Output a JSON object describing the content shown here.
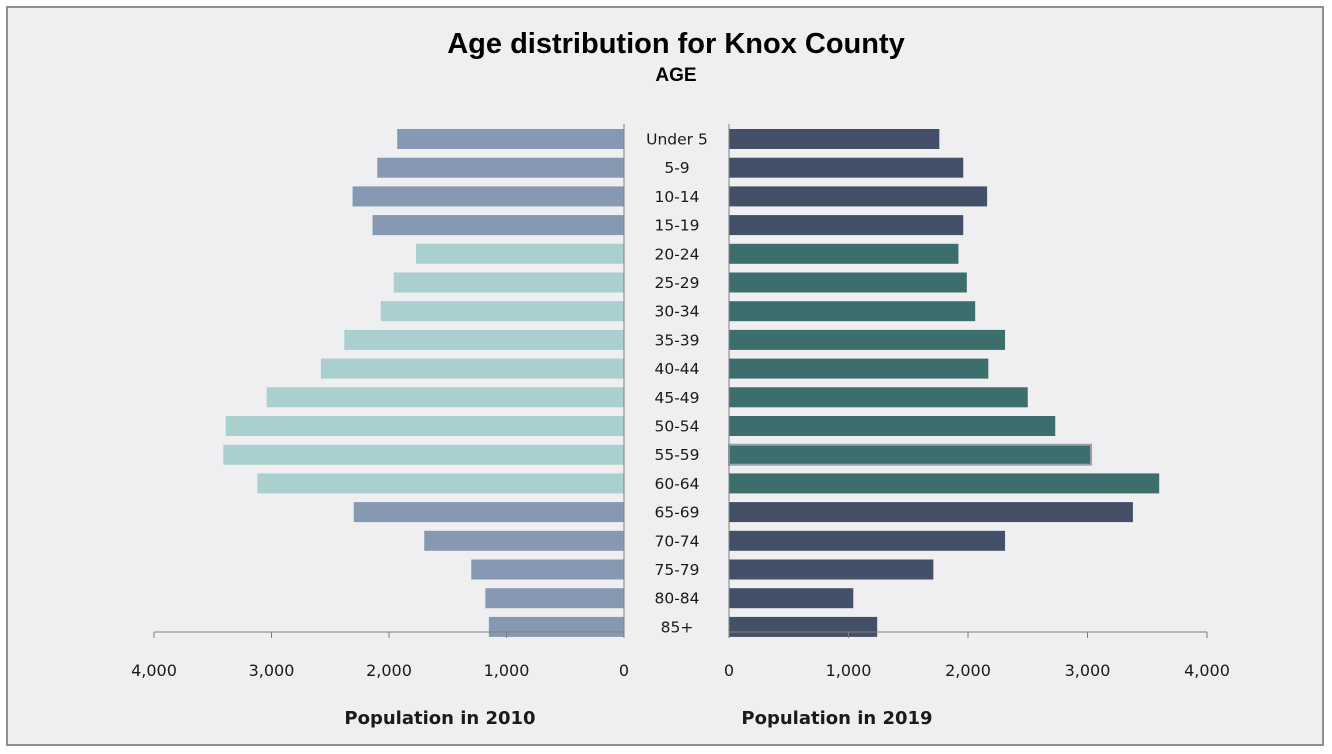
{
  "chart_data": {
    "type": "bar",
    "title": "Age distribution for Knox County",
    "subtitle": "AGE",
    "categories": [
      "Under 5",
      "5-9",
      "10-14",
      "15-19",
      "20-24",
      "25-29",
      "30-34",
      "35-39",
      "40-44",
      "45-49",
      "50-54",
      "55-59",
      "60-64",
      "65-69",
      "70-74",
      "75-79",
      "80-84",
      "85+"
    ],
    "series": [
      {
        "name": "Population in 2010",
        "values": [
          1930,
          2100,
          2310,
          2140,
          1770,
          1960,
          2070,
          2380,
          2580,
          3040,
          3390,
          3410,
          3120,
          2300,
          1700,
          1300,
          1180,
          1150
        ],
        "colors": [
          "#8798b3",
          "#8798b3",
          "#8798b3",
          "#8798b3",
          "#a9cfcf",
          "#a9cfcf",
          "#a9cfcf",
          "#a9cfcf",
          "#a9cfcf",
          "#a9cfcf",
          "#a9cfcf",
          "#a9cfcf",
          "#a9cfcf",
          "#8798b3",
          "#8798b3",
          "#8798b3",
          "#8798b3",
          "#8798b3"
        ]
      },
      {
        "name": "Population in 2019",
        "values": [
          1760,
          1960,
          2160,
          1960,
          1920,
          1990,
          2060,
          2310,
          2170,
          2500,
          2730,
          3030,
          3600,
          3380,
          2310,
          1710,
          1040,
          1240
        ],
        "colors": [
          "#435068",
          "#435068",
          "#435068",
          "#435068",
          "#3b6e6c",
          "#3b6e6c",
          "#3b6e6c",
          "#3b6e6c",
          "#3b6e6c",
          "#3b6e6c",
          "#3b6e6c",
          "#3b6e6c",
          "#3b6e6c",
          "#435068",
          "#435068",
          "#435068",
          "#435068",
          "#435068"
        ]
      }
    ],
    "xlim": [
      0,
      4000
    ],
    "left_ticks": [
      "4,000",
      "3,000",
      "2,000",
      "1,000",
      "0"
    ],
    "right_ticks": [
      "0",
      "1,000",
      "2,000",
      "3,000",
      "4,000"
    ],
    "left_axis_title": "Population in 2010",
    "right_axis_title": "Population in 2019",
    "grid": false,
    "legend": "none"
  }
}
